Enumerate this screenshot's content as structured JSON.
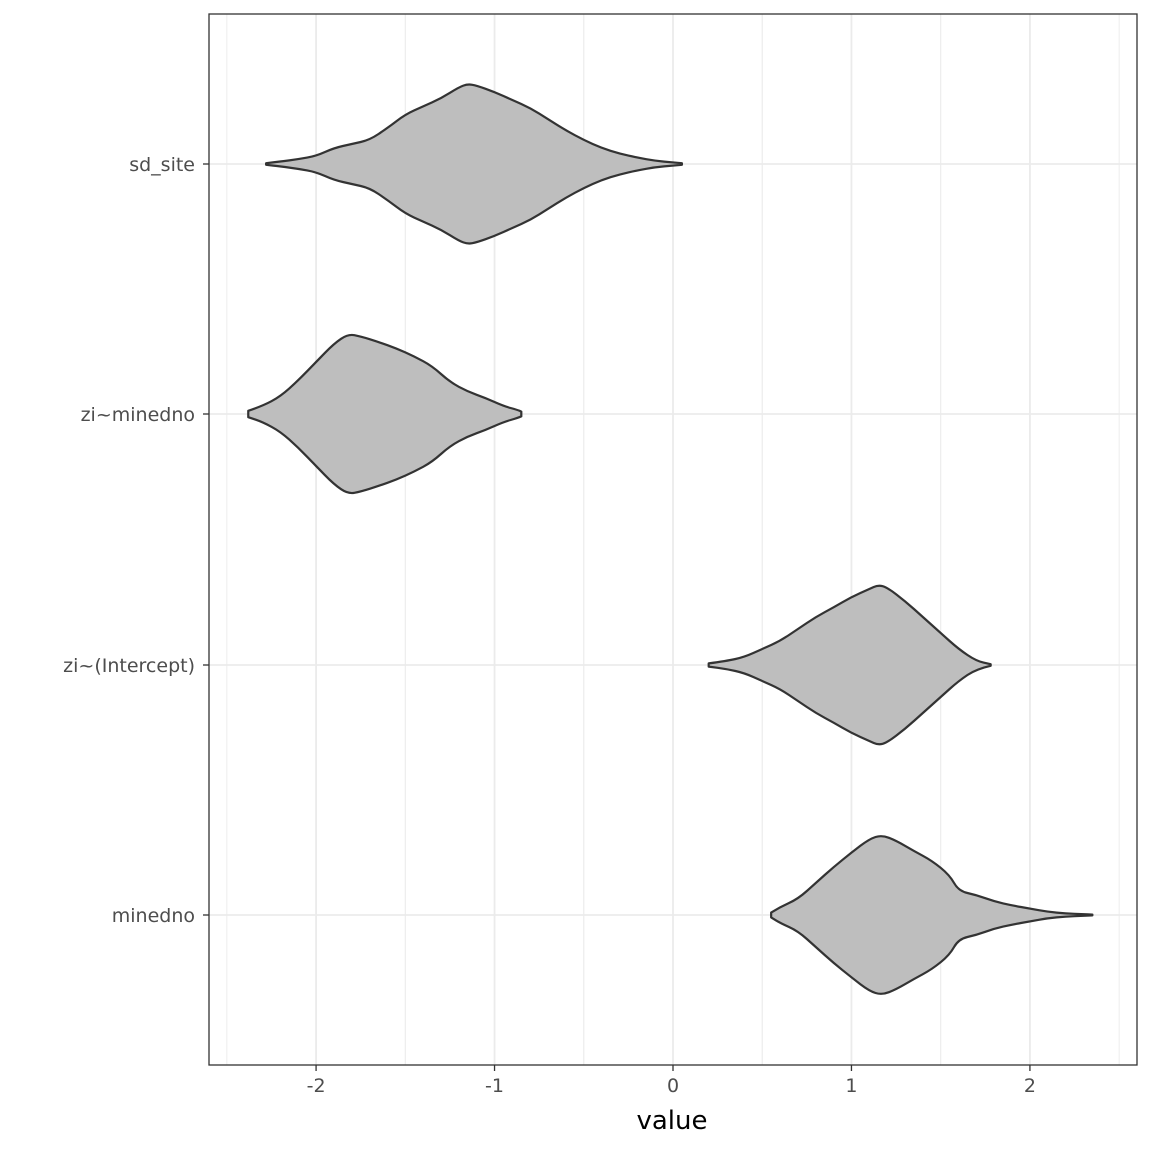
{
  "chart_data": {
    "type": "violin",
    "xlabel": "value",
    "ylabel": "",
    "xlim": [
      -2.6,
      2.6
    ],
    "x_ticks": [
      -2,
      -1,
      0,
      1,
      2
    ],
    "x_tick_labels": [
      "-2",
      "-1",
      "0",
      "1",
      "2"
    ],
    "categories": [
      "sd_site",
      "zi~minedno",
      "zi~(Intercept)",
      "minedno"
    ],
    "grid": true,
    "legend": "none",
    "colors": {
      "fill": "#bebebe",
      "outline": "#333333",
      "grid": "#ebebeb",
      "panel_border": "#333333"
    },
    "violins": [
      {
        "name": "sd_site",
        "profile": [
          [
            -2.28,
            0.01
          ],
          [
            -2.2,
            0.03
          ],
          [
            -2.1,
            0.06
          ],
          [
            -2.0,
            0.1
          ],
          [
            -1.9,
            0.2
          ],
          [
            -1.8,
            0.25
          ],
          [
            -1.7,
            0.3
          ],
          [
            -1.6,
            0.45
          ],
          [
            -1.5,
            0.62
          ],
          [
            -1.4,
            0.72
          ],
          [
            -1.3,
            0.82
          ],
          [
            -1.2,
            0.96
          ],
          [
            -1.15,
            1.0
          ],
          [
            -1.1,
            0.98
          ],
          [
            -1.0,
            0.9
          ],
          [
            -0.9,
            0.8
          ],
          [
            -0.8,
            0.7
          ],
          [
            -0.7,
            0.56
          ],
          [
            -0.6,
            0.42
          ],
          [
            -0.5,
            0.3
          ],
          [
            -0.4,
            0.2
          ],
          [
            -0.3,
            0.13
          ],
          [
            -0.2,
            0.08
          ],
          [
            -0.1,
            0.04
          ],
          [
            0.0,
            0.02
          ],
          [
            0.05,
            0.01
          ]
        ]
      },
      {
        "name": "zi~minedno",
        "profile": [
          [
            -2.38,
            0.04
          ],
          [
            -2.3,
            0.1
          ],
          [
            -2.2,
            0.22
          ],
          [
            -2.1,
            0.42
          ],
          [
            -2.0,
            0.65
          ],
          [
            -1.9,
            0.88
          ],
          [
            -1.82,
            1.0
          ],
          [
            -1.75,
            0.97
          ],
          [
            -1.65,
            0.9
          ],
          [
            -1.55,
            0.82
          ],
          [
            -1.45,
            0.72
          ],
          [
            -1.35,
            0.6
          ],
          [
            -1.25,
            0.4
          ],
          [
            -1.15,
            0.28
          ],
          [
            -1.05,
            0.2
          ],
          [
            -0.95,
            0.1
          ],
          [
            -0.87,
            0.05
          ],
          [
            -0.85,
            0.03
          ]
        ]
      },
      {
        "name": "zi~(Intercept)",
        "profile": [
          [
            0.2,
            0.02
          ],
          [
            0.3,
            0.05
          ],
          [
            0.4,
            0.1
          ],
          [
            0.5,
            0.2
          ],
          [
            0.6,
            0.3
          ],
          [
            0.7,
            0.45
          ],
          [
            0.8,
            0.6
          ],
          [
            0.9,
            0.72
          ],
          [
            1.0,
            0.85
          ],
          [
            1.1,
            0.95
          ],
          [
            1.15,
            1.0
          ],
          [
            1.2,
            0.97
          ],
          [
            1.3,
            0.8
          ],
          [
            1.4,
            0.6
          ],
          [
            1.5,
            0.4
          ],
          [
            1.6,
            0.2
          ],
          [
            1.7,
            0.05
          ],
          [
            1.78,
            0.01
          ]
        ]
      },
      {
        "name": "minedno",
        "profile": [
          [
            0.55,
            0.03
          ],
          [
            0.6,
            0.1
          ],
          [
            0.7,
            0.2
          ],
          [
            0.8,
            0.4
          ],
          [
            0.9,
            0.6
          ],
          [
            1.0,
            0.78
          ],
          [
            1.1,
            0.95
          ],
          [
            1.17,
            1.0
          ],
          [
            1.25,
            0.93
          ],
          [
            1.35,
            0.8
          ],
          [
            1.45,
            0.68
          ],
          [
            1.55,
            0.5
          ],
          [
            1.6,
            0.3
          ],
          [
            1.7,
            0.25
          ],
          [
            1.8,
            0.17
          ],
          [
            1.9,
            0.12
          ],
          [
            2.0,
            0.08
          ],
          [
            2.1,
            0.04
          ],
          [
            2.2,
            0.02
          ],
          [
            2.3,
            0.01
          ],
          [
            2.35,
            0.005
          ]
        ]
      }
    ]
  }
}
